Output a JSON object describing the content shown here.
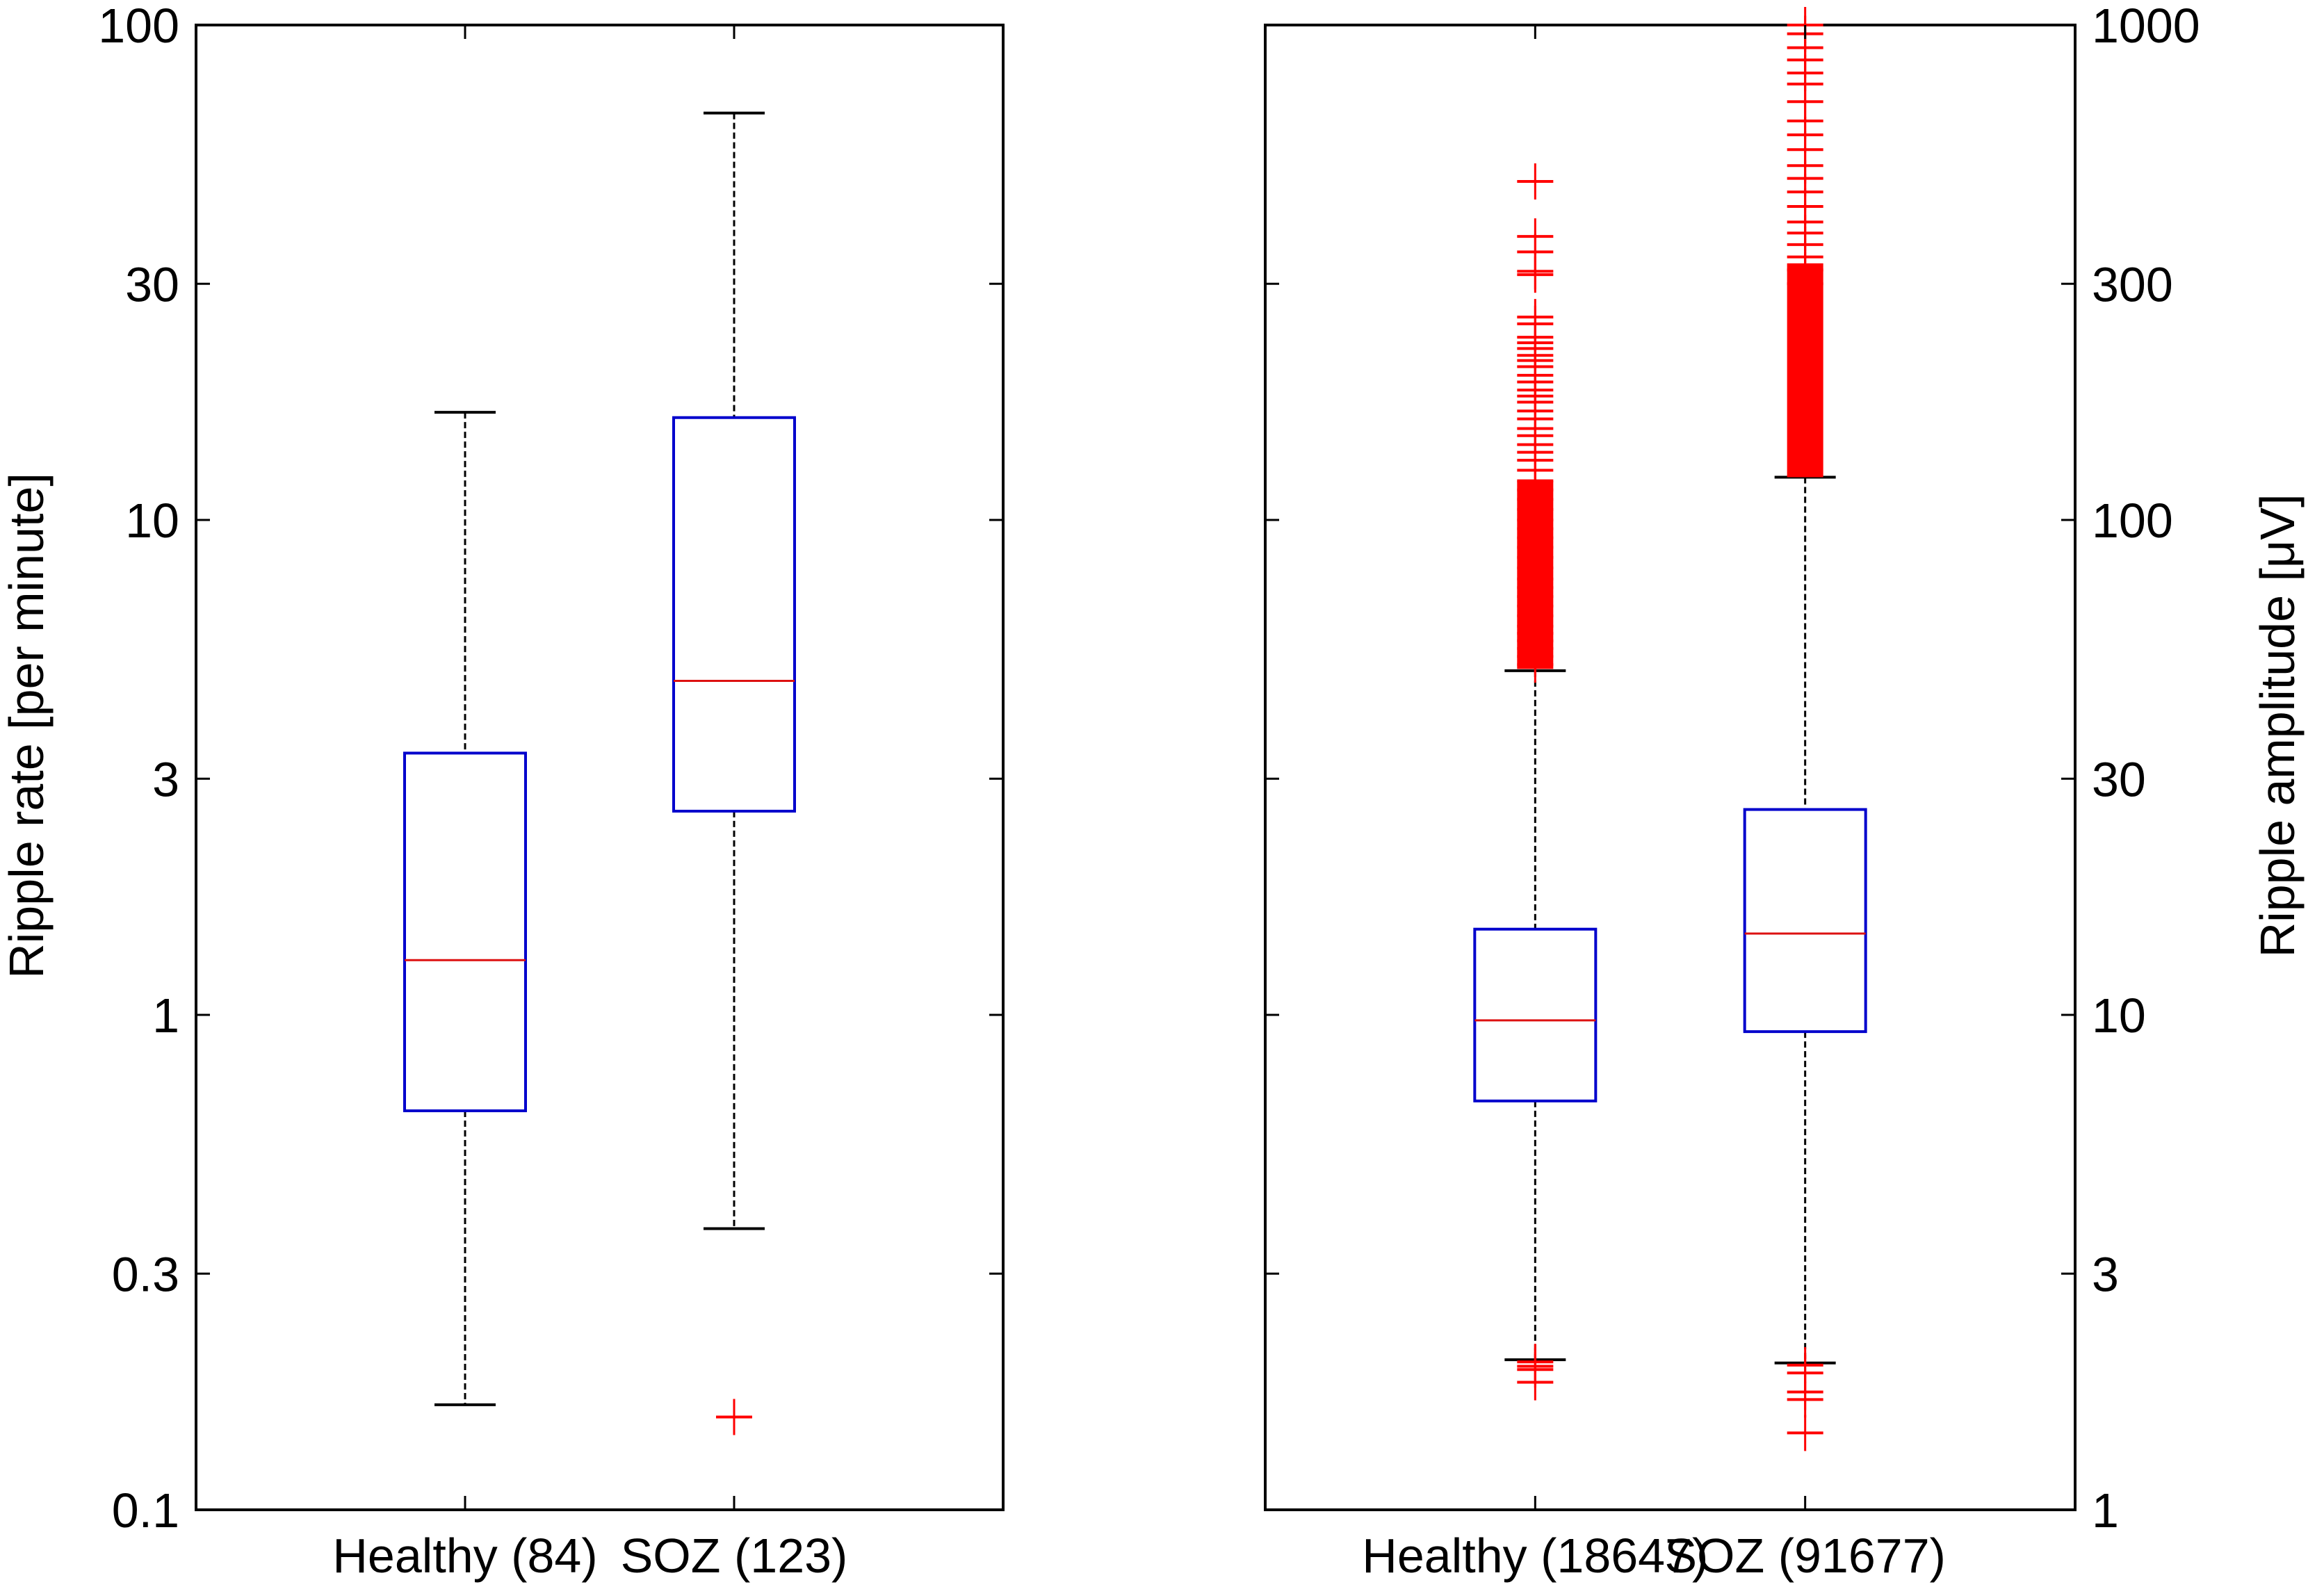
{
  "chart_data": [
    {
      "type": "box",
      "panel": "left",
      "title": "",
      "xlabel": "",
      "ylabel": "Ripple rate [per minute]",
      "ylabel_side": "left",
      "yscale": "log",
      "ylim": [
        0.1,
        100
      ],
      "yticks": [
        0.1,
        0.3,
        1,
        3,
        10,
        30,
        100
      ],
      "ytick_labels": [
        "0.1",
        "0.3",
        "1",
        "3",
        "10",
        "30",
        "100"
      ],
      "grid": false,
      "categories": [
        "Healthy (84)",
        "SOZ (123)"
      ],
      "boxes": [
        {
          "name": "Healthy (84)",
          "n": 84,
          "whisker_low": 0.163,
          "q1": 0.64,
          "median": 1.29,
          "q3": 3.38,
          "whisker_high": 16.5,
          "outliers": []
        },
        {
          "name": "SOZ (123)",
          "n": 123,
          "whisker_low": 0.37,
          "q1": 2.58,
          "median": 4.73,
          "q3": 16.1,
          "whisker_high": 66.4,
          "outliers": [
            0.154
          ]
        }
      ]
    },
    {
      "type": "box",
      "panel": "right",
      "title": "",
      "xlabel": "",
      "ylabel": "Ripple amplitude [μV]",
      "ylabel_side": "right",
      "yscale": "log",
      "ylim": [
        1,
        1000
      ],
      "yticks": [
        1,
        3,
        10,
        30,
        100,
        300,
        1000
      ],
      "ytick_labels": [
        "1",
        "3",
        "10",
        "30",
        "100",
        "300",
        "1000"
      ],
      "grid": false,
      "categories": [
        "Healthy (18647)",
        "SOZ (91677)"
      ],
      "boxes": [
        {
          "name": "Healthy (18647)",
          "n": 18647,
          "whisker_low": 2.01,
          "q1": 6.7,
          "median": 9.75,
          "q3": 14.9,
          "whisker_high": 49.6,
          "outliers": [
            1.81,
            1.92,
            1.95,
            1.99,
            483,
            374,
            348,
            318,
            313,
            257,
            249,
            234,
            228,
            222,
            215,
            210,
            204,
            196,
            190,
            183,
            178,
            173,
            166,
            160,
            153,
            148,
            142,
            137,
            132,
            126,
            120,
            115,
            110,
            105,
            100,
            96,
            92,
            88,
            84,
            80,
            76,
            73,
            70,
            67,
            64,
            61,
            59,
            57,
            55,
            53,
            51
          ],
          "outlier_dense_range": [
            50,
            120
          ]
        },
        {
          "name": "SOZ (91677)",
          "n": 91677,
          "whisker_low": 1.98,
          "q1": 9.25,
          "median": 14.6,
          "q3": 26.0,
          "whisker_high": 122,
          "outliers": [
            1.96,
            1.89,
            1.73,
            1.67,
            1.43,
            1000,
            960,
            900,
            850,
            800,
            760,
            700,
            640,
            600,
            560,
            520,
            490,
            460,
            430,
            400,
            380,
            360,
            340,
            320,
            300
          ],
          "outlier_dense_range": [
            122,
            330
          ]
        }
      ]
    }
  ],
  "colors": {
    "box": "#0000cc",
    "median": "#dd1111",
    "outlier": "#ff0000",
    "whisker": "#000000",
    "axis": "#000000"
  }
}
